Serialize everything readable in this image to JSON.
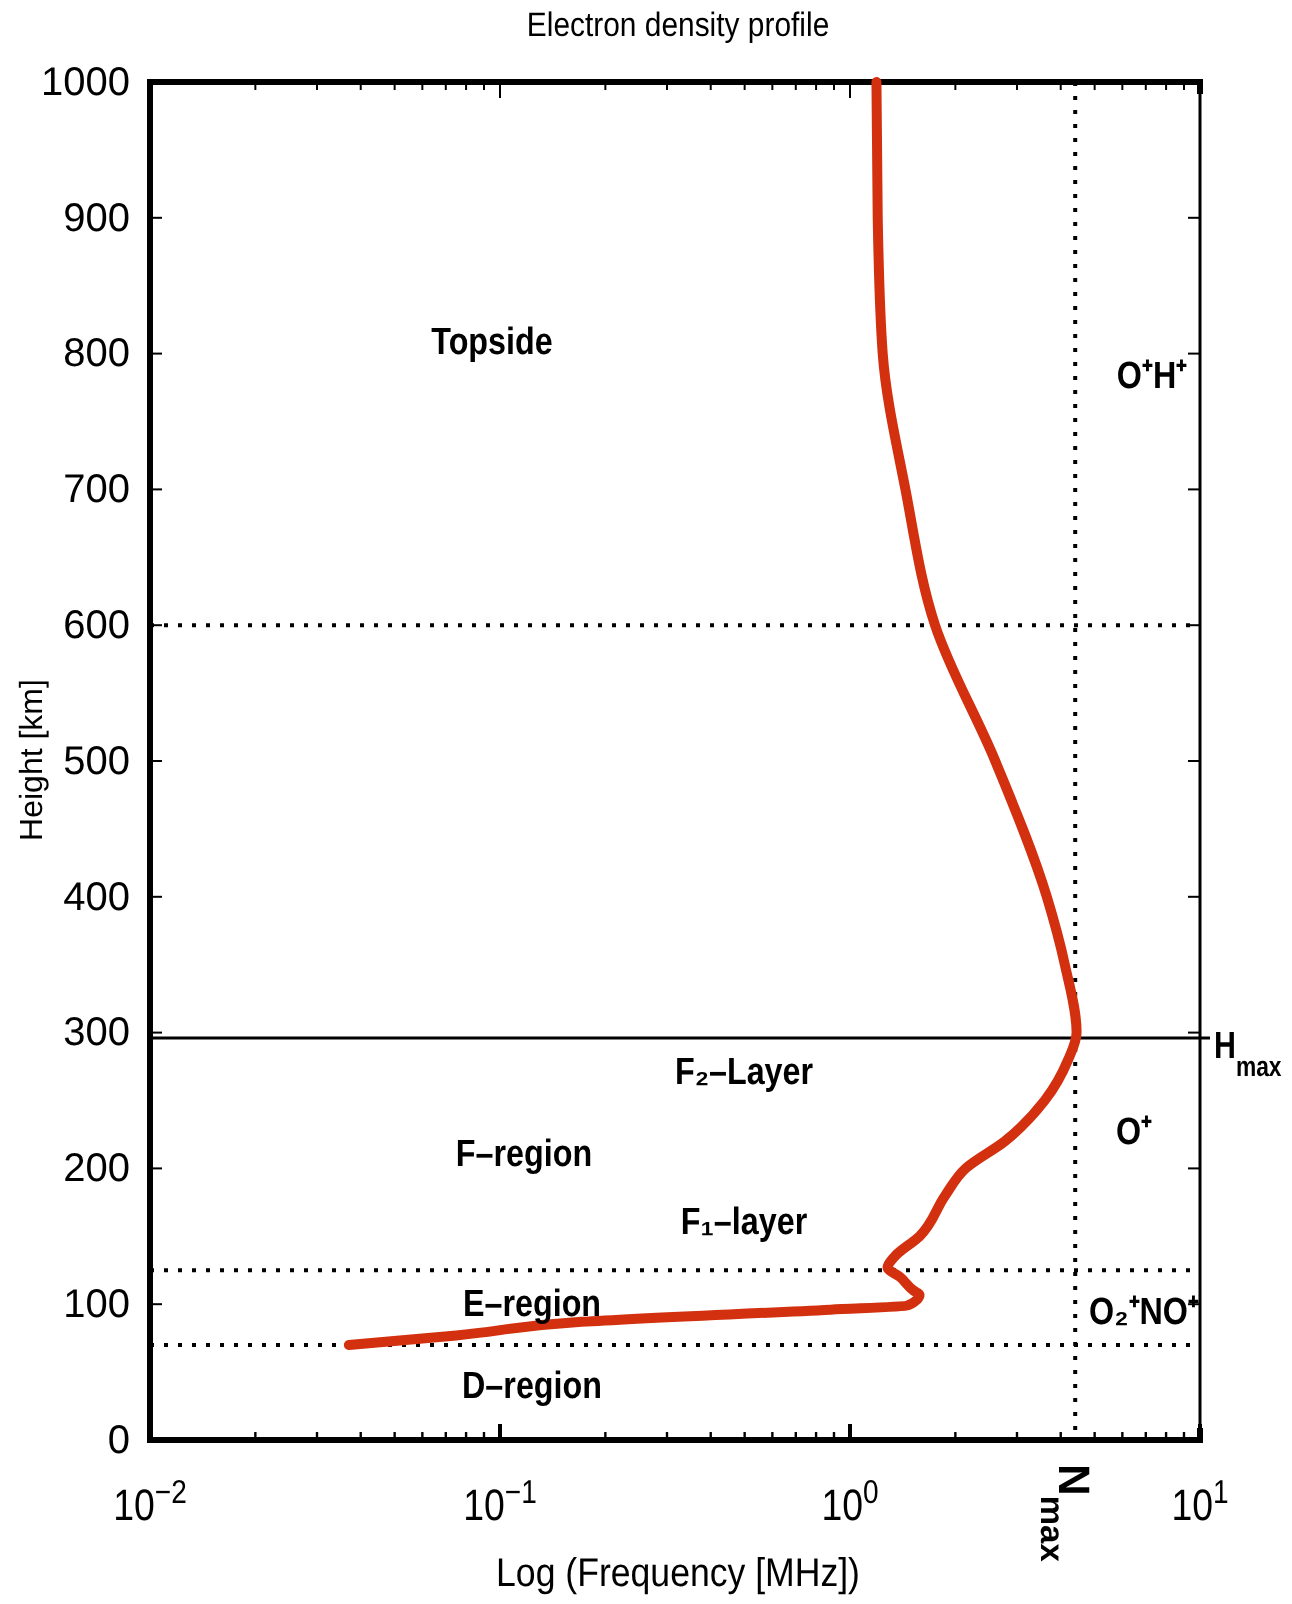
{
  "chart_data": {
    "type": "line",
    "title": "Electron density profile",
    "xlabel": "Log (Frequency [MHz])",
    "ylabel": "Height [km]",
    "log": "x",
    "grid": false,
    "xlim": [
      0.01,
      10
    ],
    "ylim": [
      0,
      1000
    ],
    "xticks": [
      {
        "value": 0.01,
        "label": "10$^{−2}$"
      },
      {
        "value": 0.02,
        "label": null
      },
      {
        "value": 0.03,
        "label": null
      },
      {
        "value": 0.04,
        "label": null
      },
      {
        "value": 0.05,
        "label": null
      },
      {
        "value": 0.06,
        "label": null
      },
      {
        "value": 0.07,
        "label": null
      },
      {
        "value": 0.08,
        "label": null
      },
      {
        "value": 0.09,
        "label": null
      },
      {
        "value": 0.1,
        "label": "10$^{−1}$"
      },
      {
        "value": 0.2,
        "label": null
      },
      {
        "value": 0.3,
        "label": null
      },
      {
        "value": 0.4,
        "label": null
      },
      {
        "value": 0.5,
        "label": null
      },
      {
        "value": 0.6,
        "label": null
      },
      {
        "value": 0.7,
        "label": null
      },
      {
        "value": 0.8,
        "label": null
      },
      {
        "value": 0.9,
        "label": null
      },
      {
        "value": 1,
        "label": "10$^{0}$"
      },
      {
        "value": 2,
        "label": null
      },
      {
        "value": 3,
        "label": null
      },
      {
        "value": 4,
        "label": null
      },
      {
        "value": 5,
        "label": null
      },
      {
        "value": 6,
        "label": null
      },
      {
        "value": 7,
        "label": null
      },
      {
        "value": 8,
        "label": null
      },
      {
        "value": 9,
        "label": null
      },
      {
        "value": 10,
        "label": "10$^{1}$"
      }
    ],
    "yticks": [
      0,
      100,
      200,
      300,
      400,
      500,
      600,
      700,
      800,
      900,
      1000
    ],
    "series": [
      {
        "color": "#d2300f",
        "line_style": "solid",
        "marker": "none",
        "x": [
          0.037,
          0.075,
          0.171,
          0.88,
          1.46,
          1.58,
          1.52,
          1.39,
          1.28,
          1.34,
          1.58,
          1.87,
          2.14,
          2.77,
          3.6,
          4.2,
          4.44,
          4.11,
          3.65,
          2.6,
          1.75,
          1.44,
          1.24,
          1.2,
          1.19
        ],
        "values": [
          70,
          77,
          87,
          96,
          99,
          107,
          110,
          120,
          127,
          135,
          150,
          180,
          200,
          220,
          250,
          280,
          300,
          350,
          400,
          500,
          600,
          700,
          800,
          900,
          1000
        ]
      }
    ],
    "ref_lines": [
      {
        "axis": "y",
        "value": 296,
        "label": "H$_{max}$",
        "line_style": "solid",
        "color": "#000000"
      },
      {
        "axis": "y",
        "value": 600,
        "label": null,
        "line_style": "dotted",
        "color": "#000000"
      },
      {
        "axis": "y",
        "value": 125,
        "label": null,
        "line_style": "dotted",
        "color": "#000000"
      },
      {
        "axis": "y",
        "value": 70,
        "label": null,
        "line_style": "dotted",
        "color": "#000000"
      },
      {
        "axis": "x",
        "value": 4.4,
        "label": "N$_{max}$",
        "line_style": "dotted",
        "color": "#000000"
      }
    ],
    "annotations": [
      "Topside",
      "O⁺H⁺",
      "F₂–Layer",
      "F–region",
      "O⁺",
      "F₁–layer",
      "E–region",
      "O₂⁺NO⁺",
      "D–region"
    ]
  }
}
